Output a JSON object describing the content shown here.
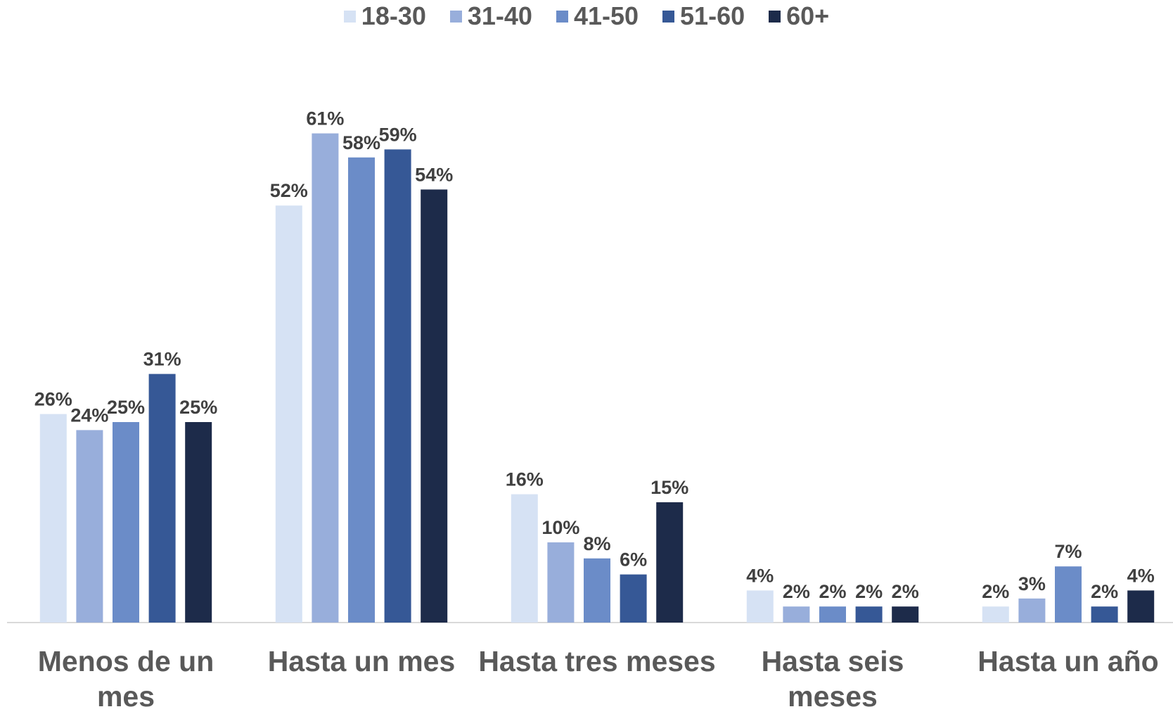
{
  "chart_data": {
    "type": "bar",
    "categories": [
      "Menos de un mes",
      "Hasta un mes",
      "Hasta tres meses",
      "Hasta seis meses",
      "Hasta un año"
    ],
    "series": [
      {
        "name": "18-30",
        "color": "#d6e2f4",
        "values": [
          26,
          52,
          16,
          4,
          2
        ],
        "value_labels": [
          "26%",
          "52%",
          "16%",
          "4%",
          "2%"
        ]
      },
      {
        "name": "31-40",
        "color": "#98aedb",
        "values": [
          24,
          61,
          10,
          2,
          3
        ],
        "value_labels": [
          "24%",
          "61%",
          "10%",
          "2%",
          "3%"
        ]
      },
      {
        "name": "41-50",
        "color": "#6b8cc8",
        "values": [
          25,
          58,
          8,
          2,
          7
        ],
        "value_labels": [
          "25%",
          "58%",
          "8%",
          "2%",
          "7%"
        ]
      },
      {
        "name": "51-60",
        "color": "#365896",
        "values": [
          31,
          59,
          6,
          2,
          2
        ],
        "value_labels": [
          "31%",
          "59%",
          "6%",
          "2%",
          "2%"
        ]
      },
      {
        "name": "60+",
        "color": "#1d2b4a",
        "values": [
          25,
          54,
          15,
          2,
          4
        ],
        "value_labels": [
          "25%",
          "54%",
          "15%",
          "2%",
          "4%"
        ]
      }
    ],
    "legend": "top"
  }
}
